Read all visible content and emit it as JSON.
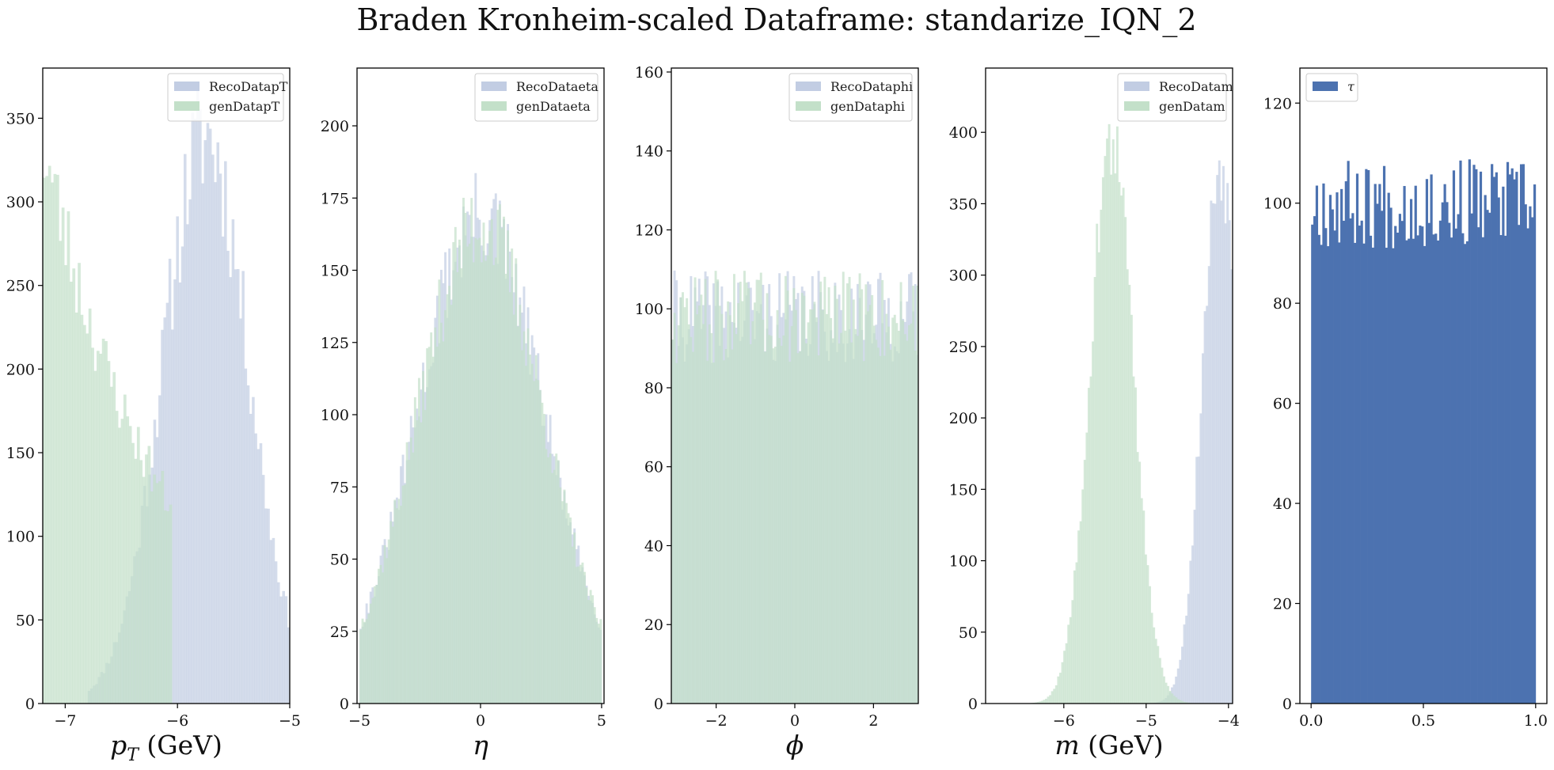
{
  "title": "Braden Kronheim-scaled Dataframe: standarize_IQN_2",
  "chart_data": [
    {
      "type": "histogram",
      "xlabel_main": "p",
      "xlabel_sub": "T",
      "xlabel_unit": " (GeV)",
      "xlim": [
        -7.2,
        -5.0
      ],
      "ylim": [
        0,
        380
      ],
      "xticks": [
        -7,
        -6,
        -5
      ],
      "xtick_labels": [
        "−7",
        "−6",
        "−5"
      ],
      "yticks": [
        0,
        50,
        100,
        150,
        200,
        250,
        300,
        350
      ],
      "legend_position": "top-right",
      "series": [
        {
          "name": "RecoDatapT",
          "color": "#c2cde3",
          "gen": {
            "kind": "gauss",
            "mu": -5.75,
            "sigma": 0.38,
            "peak": 340,
            "start": -6.8,
            "end": -5.0,
            "bins": 80,
            "noise": 0.12,
            "seed": 11
          }
        },
        {
          "name": "genDatapT",
          "color": "#c3e0c9",
          "gen": {
            "kind": "exp",
            "x0": -7.2,
            "peak": 335,
            "tau": 1.1,
            "start": -7.2,
            "end": -6.05,
            "bins": 48,
            "noise": 0.1,
            "seed": 23
          }
        }
      ]
    },
    {
      "type": "histogram",
      "xlabel_main": "η",
      "xlabel_sub": "",
      "xlabel_unit": "",
      "xlim": [
        -5.1,
        5.1
      ],
      "ylim": [
        0,
        220
      ],
      "xticks": [
        -5,
        0,
        5
      ],
      "xtick_labels": [
        "−5",
        "0",
        "5"
      ],
      "yticks": [
        0,
        25,
        50,
        75,
        100,
        125,
        150,
        175,
        200
      ],
      "legend_position": "top-right",
      "series": [
        {
          "name": "RecoDataeta",
          "color": "#c2cde3",
          "gen": {
            "kind": "gauss",
            "mu": 0,
            "sigma": 2.6,
            "peak": 168,
            "start": -5.0,
            "end": 5.0,
            "bins": 120,
            "noise": 0.1,
            "seed": 31
          }
        },
        {
          "name": "genDataeta",
          "color": "#c3e0c9",
          "gen": {
            "kind": "gauss",
            "mu": 0,
            "sigma": 2.6,
            "peak": 166,
            "start": -5.0,
            "end": 5.0,
            "bins": 120,
            "noise": 0.1,
            "seed": 37
          }
        }
      ]
    },
    {
      "type": "histogram",
      "xlabel_main": "ϕ",
      "xlabel_sub": "",
      "xlabel_unit": "",
      "xlim": [
        -3.14,
        3.14
      ],
      "ylim": [
        0,
        161
      ],
      "xticks": [
        -2,
        0,
        2
      ],
      "xtick_labels": [
        "−2",
        "0",
        "2"
      ],
      "yticks": [
        0,
        20,
        40,
        60,
        80,
        100,
        120,
        140,
        160
      ],
      "legend_position": "top-right",
      "series": [
        {
          "name": "RecoDataphi",
          "color": "#c2cde3",
          "gen": {
            "kind": "flat",
            "level": 98,
            "start": -3.14,
            "end": 3.14,
            "bins": 120,
            "noise": 0.12,
            "seed": 41
          }
        },
        {
          "name": "genDataphi",
          "color": "#c3e0c9",
          "gen": {
            "kind": "flat",
            "level": 98,
            "start": -3.14,
            "end": 3.14,
            "bins": 120,
            "noise": 0.12,
            "seed": 47
          }
        }
      ]
    },
    {
      "type": "histogram",
      "xlabel_main": "m",
      "xlabel_sub": "",
      "xlabel_unit": " (GeV)",
      "xlim": [
        -6.95,
        -3.95
      ],
      "ylim": [
        0,
        445
      ],
      "xticks": [
        -6,
        -5,
        -4
      ],
      "xtick_labels": [
        "−6",
        "−5",
        "−4"
      ],
      "yticks": [
        0,
        50,
        100,
        150,
        200,
        250,
        300,
        350,
        400
      ],
      "legend_position": "top-right",
      "series": [
        {
          "name": "RecoDatam",
          "color": "#c2cde3",
          "gen": {
            "kind": "gauss",
            "mu": -4.1,
            "sigma": 0.22,
            "peak": 380,
            "start": -4.95,
            "end": -3.95,
            "bins": 40,
            "noise": 0.08,
            "seed": 53
          }
        },
        {
          "name": "genDatam",
          "color": "#c3e0c9",
          "gen": {
            "kind": "gauss",
            "mu": -5.42,
            "sigma": 0.26,
            "peak": 395,
            "start": -6.55,
            "end": -4.45,
            "bins": 85,
            "noise": 0.08,
            "seed": 59
          }
        }
      ]
    },
    {
      "type": "histogram",
      "xlabel_main": "",
      "xlabel_sub": "",
      "xlabel_unit": "",
      "xlim": [
        -0.05,
        1.05
      ],
      "ylim": [
        0,
        127
      ],
      "xticks": [
        0.0,
        0.5,
        1.0
      ],
      "xtick_labels": [
        "0.0",
        "0.5",
        "1.0"
      ],
      "yticks": [
        0,
        20,
        40,
        60,
        80,
        100,
        120
      ],
      "legend_position": "top-left",
      "series": [
        {
          "name": "τ",
          "color": "#4c72b0",
          "gen": {
            "kind": "flat",
            "level": 100,
            "start": 0.0,
            "end": 1.0,
            "bins": 100,
            "noise": 0.09,
            "seed": 67
          }
        }
      ]
    }
  ]
}
